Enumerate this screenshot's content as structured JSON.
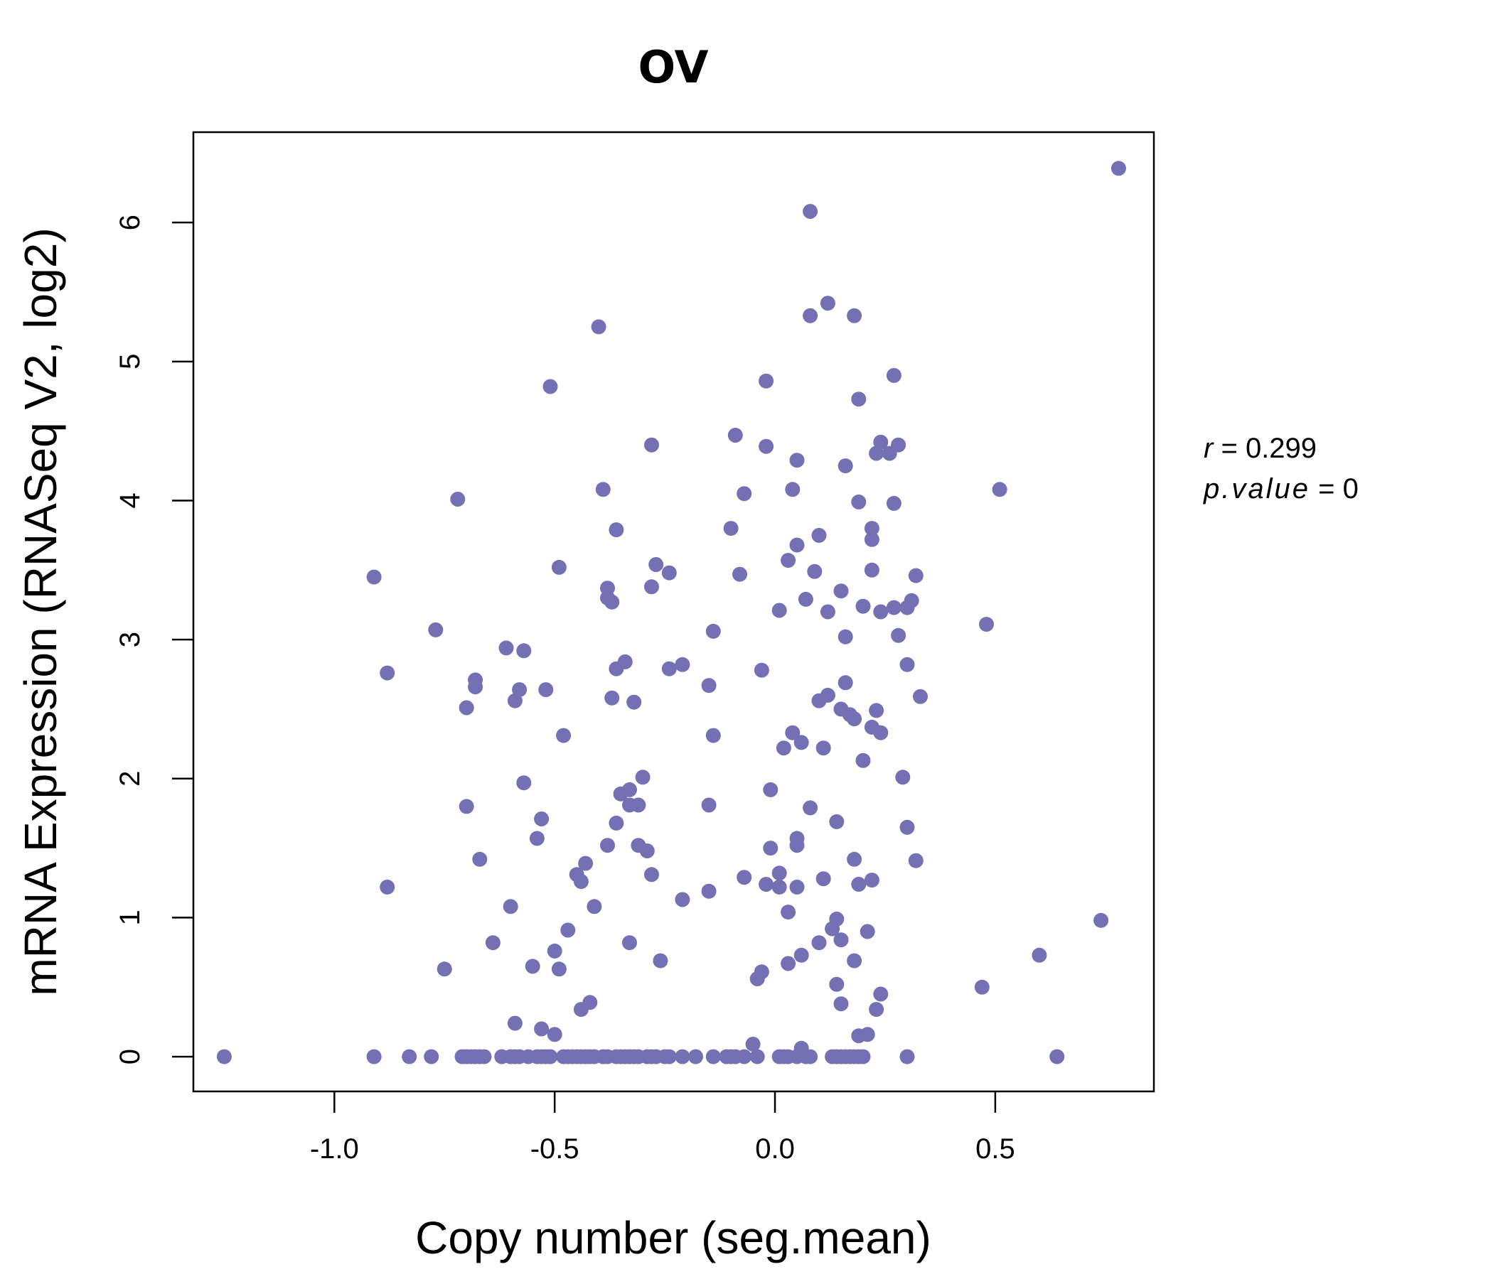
{
  "chart_data": {
    "type": "scatter",
    "title": "OV",
    "xlabel": "Copy number (seg.mean)",
    "ylabel": "mRNA Expression (RNASeq V2, log2)",
    "xlim": [
      -1.32,
      0.86
    ],
    "ylim": [
      -0.25,
      6.65
    ],
    "xticks": [
      "-1.0",
      "-0.5",
      "0.0",
      "0.5"
    ],
    "xtick_values": [
      -1.0,
      -0.5,
      0.0,
      0.5
    ],
    "yticks": [
      "0",
      "1",
      "2",
      "3",
      "4",
      "5",
      "6"
    ],
    "ytick_values": [
      0,
      1,
      2,
      3,
      4,
      5,
      6
    ],
    "grid": false,
    "colors": {
      "points": "#7370b4",
      "title": "#7370b4"
    },
    "stats": {
      "r_label": "r",
      "r_value": "0.299",
      "p_label": "p.value",
      "p_value": "0"
    },
    "points": [
      [
        -1.25,
        0
      ],
      [
        -0.91,
        0
      ],
      [
        -0.83,
        0
      ],
      [
        -0.78,
        0
      ],
      [
        -0.71,
        0
      ],
      [
        -0.7,
        0
      ],
      [
        -0.69,
        0
      ],
      [
        -0.68,
        0
      ],
      [
        -0.67,
        0
      ],
      [
        -0.66,
        0
      ],
      [
        -0.62,
        0
      ],
      [
        -0.6,
        0
      ],
      [
        -0.59,
        0
      ],
      [
        -0.58,
        0
      ],
      [
        -0.56,
        0
      ],
      [
        -0.54,
        0
      ],
      [
        -0.53,
        0
      ],
      [
        -0.52,
        0
      ],
      [
        -0.51,
        0
      ],
      [
        -0.48,
        0
      ],
      [
        -0.47,
        0
      ],
      [
        -0.46,
        0
      ],
      [
        -0.45,
        0
      ],
      [
        -0.44,
        0
      ],
      [
        -0.43,
        0
      ],
      [
        -0.42,
        0
      ],
      [
        -0.41,
        0
      ],
      [
        -0.39,
        0
      ],
      [
        -0.38,
        0
      ],
      [
        -0.36,
        0
      ],
      [
        -0.35,
        0
      ],
      [
        -0.34,
        0
      ],
      [
        -0.33,
        0
      ],
      [
        -0.32,
        0
      ],
      [
        -0.31,
        0
      ],
      [
        -0.29,
        0
      ],
      [
        -0.28,
        0
      ],
      [
        -0.27,
        0
      ],
      [
        -0.25,
        0
      ],
      [
        -0.24,
        0
      ],
      [
        -0.21,
        0
      ],
      [
        -0.18,
        0
      ],
      [
        -0.14,
        0
      ],
      [
        -0.11,
        0
      ],
      [
        -0.1,
        0
      ],
      [
        -0.09,
        0
      ],
      [
        -0.07,
        0
      ],
      [
        -0.04,
        0
      ],
      [
        0.01,
        0
      ],
      [
        0.02,
        0
      ],
      [
        0.03,
        0
      ],
      [
        0.05,
        0
      ],
      [
        0.07,
        0
      ],
      [
        0.08,
        0
      ],
      [
        0.13,
        0
      ],
      [
        0.14,
        0
      ],
      [
        0.15,
        0
      ],
      [
        0.16,
        0
      ],
      [
        0.17,
        0
      ],
      [
        0.18,
        0
      ],
      [
        0.19,
        0
      ],
      [
        0.2,
        0
      ],
      [
        0.3,
        0
      ],
      [
        0.64,
        0
      ],
      [
        -0.91,
        3.45
      ],
      [
        -0.88,
        2.76
      ],
      [
        -0.88,
        1.22
      ],
      [
        -0.77,
        3.07
      ],
      [
        -0.75,
        0.63
      ],
      [
        -0.72,
        4.01
      ],
      [
        -0.7,
        2.51
      ],
      [
        -0.7,
        1.8
      ],
      [
        -0.68,
        2.71
      ],
      [
        -0.68,
        2.66
      ],
      [
        -0.67,
        1.42
      ],
      [
        -0.64,
        0.82
      ],
      [
        -0.61,
        2.94
      ],
      [
        -0.6,
        1.08
      ],
      [
        -0.59,
        2.56
      ],
      [
        -0.59,
        0.24
      ],
      [
        -0.58,
        2.64
      ],
      [
        -0.57,
        2.92
      ],
      [
        -0.57,
        1.97
      ],
      [
        -0.55,
        0.65
      ],
      [
        -0.54,
        1.57
      ],
      [
        -0.53,
        1.71
      ],
      [
        -0.53,
        0.2
      ],
      [
        -0.52,
        2.64
      ],
      [
        -0.51,
        4.82
      ],
      [
        -0.5,
        0.76
      ],
      [
        -0.5,
        0.16
      ],
      [
        -0.49,
        3.52
      ],
      [
        -0.49,
        0.63
      ],
      [
        -0.48,
        2.31
      ],
      [
        -0.47,
        0.91
      ],
      [
        -0.45,
        1.31
      ],
      [
        -0.44,
        1.26
      ],
      [
        -0.44,
        0.34
      ],
      [
        -0.43,
        1.39
      ],
      [
        -0.42,
        0.39
      ],
      [
        -0.41,
        1.08
      ],
      [
        -0.4,
        5.25
      ],
      [
        -0.39,
        4.08
      ],
      [
        -0.38,
        3.37
      ],
      [
        -0.38,
        3.3
      ],
      [
        -0.38,
        1.52
      ],
      [
        -0.37,
        3.27
      ],
      [
        -0.37,
        2.58
      ],
      [
        -0.36,
        3.79
      ],
      [
        -0.36,
        2.79
      ],
      [
        -0.36,
        1.68
      ],
      [
        -0.35,
        1.89
      ],
      [
        -0.34,
        2.84
      ],
      [
        -0.33,
        1.92
      ],
      [
        -0.33,
        1.81
      ],
      [
        -0.33,
        0.82
      ],
      [
        -0.32,
        2.55
      ],
      [
        -0.31,
        1.81
      ],
      [
        -0.31,
        1.52
      ],
      [
        -0.3,
        2.01
      ],
      [
        -0.29,
        1.48
      ],
      [
        -0.28,
        4.4
      ],
      [
        -0.28,
        3.38
      ],
      [
        -0.28,
        1.31
      ],
      [
        -0.27,
        3.54
      ],
      [
        -0.26,
        0.69
      ],
      [
        -0.24,
        3.48
      ],
      [
        -0.24,
        2.79
      ],
      [
        -0.21,
        2.82
      ],
      [
        -0.21,
        1.13
      ],
      [
        -0.15,
        2.67
      ],
      [
        -0.15,
        1.81
      ],
      [
        -0.15,
        1.19
      ],
      [
        -0.14,
        3.06
      ],
      [
        -0.14,
        2.31
      ],
      [
        -0.1,
        3.8
      ],
      [
        -0.09,
        4.47
      ],
      [
        -0.08,
        3.47
      ],
      [
        -0.07,
        4.05
      ],
      [
        -0.07,
        1.29
      ],
      [
        -0.05,
        0.09
      ],
      [
        -0.04,
        0.56
      ],
      [
        -0.03,
        0.61
      ],
      [
        -0.03,
        2.78
      ],
      [
        -0.02,
        4.86
      ],
      [
        -0.02,
        4.39
      ],
      [
        -0.02,
        1.24
      ],
      [
        -0.01,
        1.92
      ],
      [
        -0.01,
        1.5
      ],
      [
        0.01,
        3.21
      ],
      [
        0.01,
        1.22
      ],
      [
        0.01,
        1.32
      ],
      [
        0.02,
        2.22
      ],
      [
        0.03,
        3.57
      ],
      [
        0.03,
        0.67
      ],
      [
        0.03,
        1.04
      ],
      [
        0.04,
        2.33
      ],
      [
        0.04,
        4.08
      ],
      [
        0.05,
        1.52
      ],
      [
        0.05,
        1.57
      ],
      [
        0.05,
        3.68
      ],
      [
        0.05,
        4.29
      ],
      [
        0.05,
        1.22
      ],
      [
        0.06,
        2.26
      ],
      [
        0.06,
        0.73
      ],
      [
        0.06,
        0.06
      ],
      [
        0.07,
        3.29
      ],
      [
        0.08,
        6.08
      ],
      [
        0.08,
        5.33
      ],
      [
        0.08,
        1.79
      ],
      [
        0.09,
        3.49
      ],
      [
        0.1,
        2.56
      ],
      [
        0.1,
        3.75
      ],
      [
        0.1,
        0.82
      ],
      [
        0.11,
        2.22
      ],
      [
        0.11,
        1.28
      ],
      [
        0.12,
        5.42
      ],
      [
        0.12,
        3.2
      ],
      [
        0.12,
        2.6
      ],
      [
        0.13,
        0.92
      ],
      [
        0.14,
        0.99
      ],
      [
        0.14,
        1.69
      ],
      [
        0.14,
        0.52
      ],
      [
        0.15,
        2.5
      ],
      [
        0.15,
        0.38
      ],
      [
        0.15,
        0.84
      ],
      [
        0.15,
        3.35
      ],
      [
        0.16,
        4.25
      ],
      [
        0.16,
        3.02
      ],
      [
        0.16,
        2.69
      ],
      [
        0.17,
        2.46
      ],
      [
        0.18,
        2.43
      ],
      [
        0.18,
        1.42
      ],
      [
        0.18,
        0.69
      ],
      [
        0.18,
        5.33
      ],
      [
        0.19,
        0.15
      ],
      [
        0.19,
        3.99
      ],
      [
        0.19,
        4.73
      ],
      [
        0.19,
        1.24
      ],
      [
        0.2,
        3.24
      ],
      [
        0.2,
        2.13
      ],
      [
        0.21,
        0.16
      ],
      [
        0.21,
        0.9
      ],
      [
        0.22,
        3.8
      ],
      [
        0.22,
        3.72
      ],
      [
        0.22,
        3.5
      ],
      [
        0.22,
        1.27
      ],
      [
        0.22,
        2.37
      ],
      [
        0.23,
        4.34
      ],
      [
        0.23,
        2.49
      ],
      [
        0.23,
        0.34
      ],
      [
        0.24,
        4.42
      ],
      [
        0.24,
        2.33
      ],
      [
        0.24,
        3.2
      ],
      [
        0.24,
        0.45
      ],
      [
        0.26,
        4.34
      ],
      [
        0.27,
        3.98
      ],
      [
        0.27,
        3.23
      ],
      [
        0.27,
        4.9
      ],
      [
        0.28,
        4.4
      ],
      [
        0.28,
        3.03
      ],
      [
        0.29,
        2.01
      ],
      [
        0.3,
        2.82
      ],
      [
        0.3,
        3.23
      ],
      [
        0.3,
        1.65
      ],
      [
        0.31,
        3.28
      ],
      [
        0.32,
        1.41
      ],
      [
        0.32,
        3.46
      ],
      [
        0.33,
        2.59
      ],
      [
        0.47,
        0.5
      ],
      [
        0.48,
        3.11
      ],
      [
        0.51,
        4.08
      ],
      [
        0.6,
        0.73
      ],
      [
        0.74,
        0.98
      ],
      [
        0.78,
        6.39
      ]
    ]
  }
}
